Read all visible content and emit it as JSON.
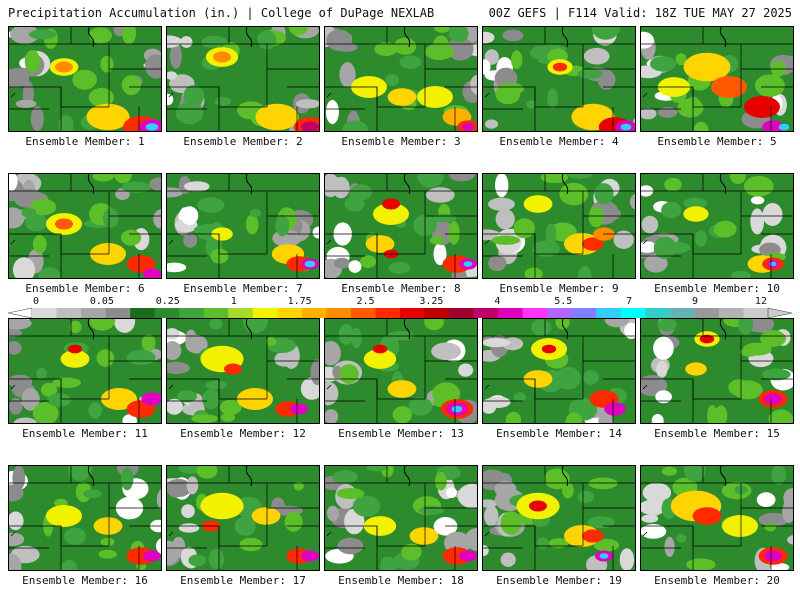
{
  "header": {
    "left_title": "Precipitation Accumulation (in.) | College of DuPage NEXLAB",
    "right_title": "00Z GEFS | F114 Valid: 18Z TUE MAY 27 2025"
  },
  "colorbar": {
    "tick_labels": [
      "0",
      "0.05",
      "0.25",
      "1",
      "1.75",
      "2.5",
      "3.25",
      "4",
      "5.5",
      "7",
      "9",
      "12"
    ],
    "colors": [
      "#d9d9d9",
      "#bfbfbf",
      "#a6a6a6",
      "#8c8c8c",
      "#1e6b1e",
      "#2d8a2d",
      "#3fa43f",
      "#5cbf2a",
      "#a8d92b",
      "#f2f200",
      "#ffd400",
      "#ffb000",
      "#ff8c00",
      "#ff5a00",
      "#ff2a00",
      "#e60000",
      "#c00000",
      "#a00030",
      "#c0006a",
      "#e000c0",
      "#ff33ff",
      "#b366ff",
      "#8080ff",
      "#33ccff",
      "#00ffff",
      "#33cccc",
      "#66b3b3",
      "#999999",
      "#b3b3b3",
      "#cccccc"
    ]
  },
  "members": [
    {
      "label": "Ensemble Member: 1",
      "blobs": [
        [
          "#f2f200",
          5,
          4,
          0.8
        ],
        [
          "#ff8c00",
          5,
          4,
          0.5
        ],
        [
          "#ffd400",
          9,
          9,
          1.2
        ],
        [
          "#ff2a00",
          12,
          10,
          1.0
        ],
        [
          "#e000c0",
          13,
          10,
          0.7
        ],
        [
          "#33ccff",
          13,
          10,
          0.35
        ]
      ]
    },
    {
      "label": "Ensemble Member: 2",
      "blobs": [
        [
          "#f2f200",
          5,
          3,
          0.9
        ],
        [
          "#ff8c00",
          5,
          3,
          0.5
        ],
        [
          "#ffd400",
          10,
          9,
          1.2
        ],
        [
          "#ff2a00",
          13,
          10,
          0.9
        ],
        [
          "#c0006a",
          13,
          10,
          0.5
        ]
      ]
    },
    {
      "label": "Ensemble Member: 3",
      "blobs": [
        [
          "#f2f200",
          4,
          6,
          1.0
        ],
        [
          "#ffd400",
          7,
          7,
          0.8
        ],
        [
          "#f2f200",
          10,
          7,
          1.0
        ],
        [
          "#ffb000",
          12,
          9,
          0.8
        ],
        [
          "#ff2a00",
          13,
          10,
          0.6
        ],
        [
          "#e000c0",
          13,
          10,
          0.35
        ]
      ]
    },
    {
      "label": "Ensemble Member: 4",
      "blobs": [
        [
          "#f2f200",
          7,
          4,
          0.7
        ],
        [
          "#ff2a00",
          7,
          4,
          0.4
        ],
        [
          "#ffd400",
          10,
          9,
          1.2
        ],
        [
          "#e60000",
          12,
          10,
          0.9
        ],
        [
          "#e000c0",
          13,
          10,
          0.6
        ],
        [
          "#33ccff",
          13,
          10,
          0.3
        ]
      ]
    },
    {
      "label": "Ensemble Member: 5",
      "blobs": [
        [
          "#ffd400",
          6,
          4,
          1.3
        ],
        [
          "#ff5a00",
          8,
          6,
          1.0
        ],
        [
          "#f2f200",
          3,
          6,
          0.9
        ],
        [
          "#e60000",
          11,
          8,
          1.0
        ],
        [
          "#e000c0",
          12,
          10,
          0.6
        ],
        [
          "#33ccff",
          13,
          10,
          0.3
        ]
      ]
    },
    {
      "label": "Ensemble Member: 6",
      "blobs": [
        [
          "#f2f200",
          5,
          5,
          1.0
        ],
        [
          "#ff5a00",
          5,
          5,
          0.5
        ],
        [
          "#ffd400",
          9,
          8,
          1.0
        ],
        [
          "#ff2a00",
          12,
          9,
          0.8
        ],
        [
          "#e000c0",
          13,
          10,
          0.5
        ]
      ]
    },
    {
      "label": "Ensemble Member: 7",
      "blobs": [
        [
          "#f2f200",
          5,
          6,
          0.6
        ],
        [
          "#ffd400",
          11,
          8,
          0.9
        ],
        [
          "#ff2a00",
          12,
          9,
          0.7
        ],
        [
          "#e000c0",
          13,
          9,
          0.5
        ],
        [
          "#33ccff",
          13,
          9,
          0.3
        ]
      ]
    },
    {
      "label": "Ensemble Member: 8",
      "blobs": [
        [
          "#f2f200",
          6,
          4,
          1.0
        ],
        [
          "#e60000",
          6,
          3,
          0.5
        ],
        [
          "#ffd400",
          5,
          7,
          0.8
        ],
        [
          "#e60000",
          6,
          8,
          0.4
        ],
        [
          "#ff2a00",
          12,
          9,
          0.8
        ],
        [
          "#e000c0",
          13,
          9,
          0.5
        ],
        [
          "#33ccff",
          13,
          9,
          0.25
        ]
      ]
    },
    {
      "label": "Ensemble Member: 9",
      "blobs": [
        [
          "#f2f200",
          5,
          3,
          0.8
        ],
        [
          "#ffd400",
          9,
          7,
          1.0
        ],
        [
          "#ff2a00",
          10,
          7,
          0.6
        ],
        [
          "#ff8c00",
          11,
          6,
          0.6
        ]
      ]
    },
    {
      "label": "Ensemble Member: 10",
      "blobs": [
        [
          "#f2f200",
          5,
          4,
          0.7
        ],
        [
          "#ffd400",
          11,
          9,
          0.8
        ],
        [
          "#ff2a00",
          12,
          9,
          0.6
        ],
        [
          "#e000c0",
          12,
          9,
          0.35
        ],
        [
          "#33ccff",
          12,
          9,
          0.2
        ]
      ]
    },
    {
      "label": "Ensemble Member: 11",
      "blobs": [
        [
          "#f2f200",
          6,
          4,
          0.8
        ],
        [
          "#e60000",
          6,
          3,
          0.4
        ],
        [
          "#ffd400",
          10,
          8,
          1.0
        ],
        [
          "#ff2a00",
          12,
          9,
          0.8
        ],
        [
          "#e000c0",
          13,
          8,
          0.6
        ]
      ]
    },
    {
      "label": "Ensemble Member: 12",
      "blobs": [
        [
          "#f2f200",
          5,
          4,
          1.2
        ],
        [
          "#ff2a00",
          6,
          5,
          0.5
        ],
        [
          "#ffd400",
          8,
          8,
          1.0
        ],
        [
          "#ff2a00",
          11,
          9,
          0.7
        ],
        [
          "#e000c0",
          12,
          9,
          0.5
        ]
      ]
    },
    {
      "label": "Ensemble Member: 13",
      "blobs": [
        [
          "#f2f200",
          5,
          4,
          0.9
        ],
        [
          "#e60000",
          5,
          3,
          0.4
        ],
        [
          "#ffd400",
          7,
          7,
          0.8
        ],
        [
          "#ff2a00",
          12,
          9,
          0.9
        ],
        [
          "#e000c0",
          12,
          9,
          0.6
        ],
        [
          "#33ccff",
          12,
          9,
          0.3
        ]
      ]
    },
    {
      "label": "Ensemble Member: 14",
      "blobs": [
        [
          "#f2f200",
          6,
          3,
          1.0
        ],
        [
          "#e60000",
          6,
          3,
          0.4
        ],
        [
          "#ffd400",
          5,
          6,
          0.8
        ],
        [
          "#ff2a00",
          11,
          8,
          0.8
        ],
        [
          "#e000c0",
          12,
          9,
          0.6
        ]
      ]
    },
    {
      "label": "Ensemble Member: 15",
      "blobs": [
        [
          "#f2f200",
          6,
          2,
          0.7
        ],
        [
          "#e60000",
          6,
          2,
          0.4
        ],
        [
          "#ffd400",
          5,
          5,
          0.6
        ],
        [
          "#ff2a00",
          12,
          8,
          0.8
        ],
        [
          "#e000c0",
          12,
          8,
          0.5
        ]
      ]
    },
    {
      "label": "Ensemble Member: 16",
      "blobs": [
        [
          "#f2f200",
          5,
          5,
          1.0
        ],
        [
          "#ffd400",
          9,
          6,
          0.8
        ],
        [
          "#ff2a00",
          12,
          9,
          0.8
        ],
        [
          "#e000c0",
          13,
          9,
          0.5
        ]
      ]
    },
    {
      "label": "Ensemble Member: 17",
      "blobs": [
        [
          "#f2f200",
          5,
          4,
          1.2
        ],
        [
          "#ff2a00",
          4,
          6,
          0.5
        ],
        [
          "#ffd400",
          9,
          5,
          0.8
        ],
        [
          "#ff2a00",
          12,
          9,
          0.7
        ],
        [
          "#e000c0",
          13,
          9,
          0.5
        ]
      ]
    },
    {
      "label": "Ensemble Member: 18",
      "blobs": [
        [
          "#f2f200",
          5,
          6,
          0.9
        ],
        [
          "#ffd400",
          9,
          7,
          0.8
        ],
        [
          "#ff2a00",
          12,
          9,
          0.8
        ],
        [
          "#e000c0",
          13,
          9,
          0.5
        ]
      ]
    },
    {
      "label": "Ensemble Member: 19",
      "blobs": [
        [
          "#f2f200",
          5,
          4,
          1.2
        ],
        [
          "#e60000",
          5,
          4,
          0.5
        ],
        [
          "#ffd400",
          9,
          7,
          1.0
        ],
        [
          "#ff2a00",
          10,
          7,
          0.6
        ],
        [
          "#e000c0",
          11,
          9,
          0.5
        ],
        [
          "#33ccff",
          11,
          9,
          0.25
        ]
      ]
    },
    {
      "label": "Ensemble Member: 20",
      "blobs": [
        [
          "#ffd400",
          5,
          4,
          1.4
        ],
        [
          "#ff2a00",
          6,
          5,
          0.8
        ],
        [
          "#f2f200",
          9,
          6,
          1.0
        ],
        [
          "#ff2a00",
          12,
          9,
          0.8
        ],
        [
          "#e000c0",
          12,
          9,
          0.5
        ]
      ]
    }
  ]
}
